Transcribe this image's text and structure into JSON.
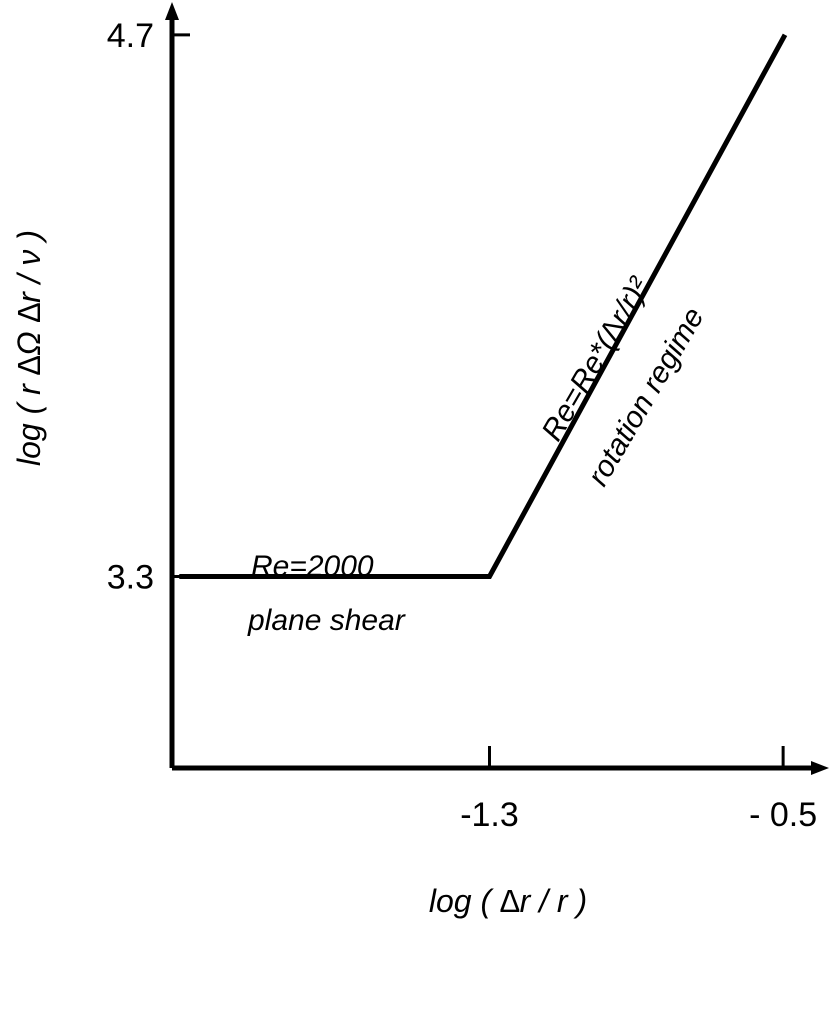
{
  "chart_data": {
    "type": "line",
    "title": "",
    "xlabel": "log ( ∆r / r )",
    "ylabel": "log ( r ∆Ω ∆r / ν )",
    "x_ticks": [
      {
        "value": -1.3,
        "label": "-1.3"
      },
      {
        "value": -0.5,
        "label": "- 0.5"
      }
    ],
    "y_ticks": [
      {
        "value": 3.3,
        "label": "3.3"
      },
      {
        "value": 4.7,
        "label": "4.7"
      }
    ],
    "xlim": [
      -2.165,
      -0.375
    ],
    "ylim": [
      2.805,
      4.79
    ],
    "grid": false,
    "series": [
      {
        "x": [
          -2.145,
          -1.3,
          -0.495
        ],
        "y": [
          3.3,
          3.3,
          4.7
        ]
      }
    ],
    "annotations": [
      {
        "text": "Re=2000",
        "region": "above flat segment"
      },
      {
        "text": "plane shear",
        "region": "below flat segment"
      },
      {
        "text": "Re=Re*(∆r/r)²",
        "region": "above sloped segment"
      },
      {
        "text": "rotation regime",
        "region": "below sloped segment"
      }
    ]
  }
}
